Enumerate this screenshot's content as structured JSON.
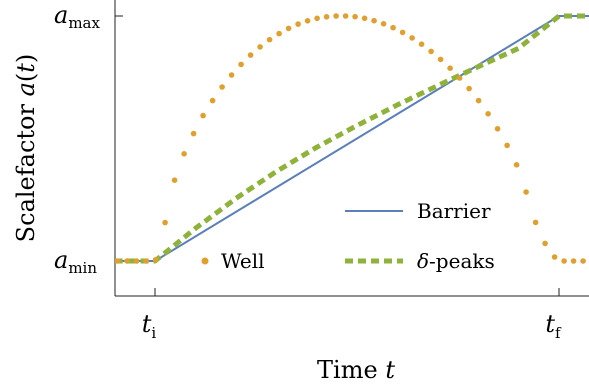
{
  "chart_data": {
    "type": "line",
    "xlabel": "Time t",
    "ylabel": "Scalefactor a(t)",
    "x_ticks": [
      {
        "base": "t",
        "sub": "i",
        "x": 1.0
      },
      {
        "base": "t",
        "sub": "f",
        "x": 11.0
      }
    ],
    "y_ticks": [
      {
        "base": "a",
        "sub": "min",
        "y": 0.0
      },
      {
        "base": "a",
        "sub": "max",
        "y": 1.0
      }
    ],
    "xlim": [
      0,
      12
    ],
    "ylim": [
      -0.14,
      1.0
    ],
    "legend": [
      {
        "series": "Well",
        "placement": "bottom-left"
      },
      {
        "series": "Barrier",
        "placement": "bottom-right"
      },
      {
        "series": "δ-peaks",
        "placement": "bottom-right"
      }
    ],
    "series": [
      {
        "name": "Barrier",
        "style": "solid",
        "color": "#5b7fba",
        "x": [
          0,
          1.0,
          11.0,
          12
        ],
        "y": [
          0,
          0,
          1,
          1
        ]
      },
      {
        "name": "δ-peaks",
        "style": "dashed",
        "color": "#8fb23a",
        "x": [
          0,
          1.0,
          2.0,
          3.0,
          4.0,
          5.0,
          6.0,
          7.0,
          8.0,
          9.0,
          10.0,
          11.0,
          12
        ],
        "y": [
          0,
          0,
          0.133,
          0.255,
          0.365,
          0.464,
          0.553,
          0.637,
          0.716,
          0.793,
          0.868,
          1.0,
          1.0
        ]
      },
      {
        "name": "Well",
        "style": "dotted",
        "color": "#e0a030",
        "x": [
          0,
          1.0,
          1.5,
          2.0,
          2.5,
          3.0,
          3.5,
          4.0,
          4.5,
          5.0,
          5.5,
          6.0,
          6.5,
          7.0,
          7.5,
          8.0,
          8.5,
          9.0,
          9.5,
          10.0,
          10.5,
          11.0,
          11.5,
          12
        ],
        "y": [
          0,
          0,
          0.338,
          0.535,
          0.673,
          0.779,
          0.86,
          0.921,
          0.964,
          0.99,
          1.0,
          0.996,
          0.977,
          0.944,
          0.896,
          0.833,
          0.754,
          0.657,
          0.534,
          0.373,
          0.124,
          0,
          0,
          0
        ]
      }
    ]
  }
}
